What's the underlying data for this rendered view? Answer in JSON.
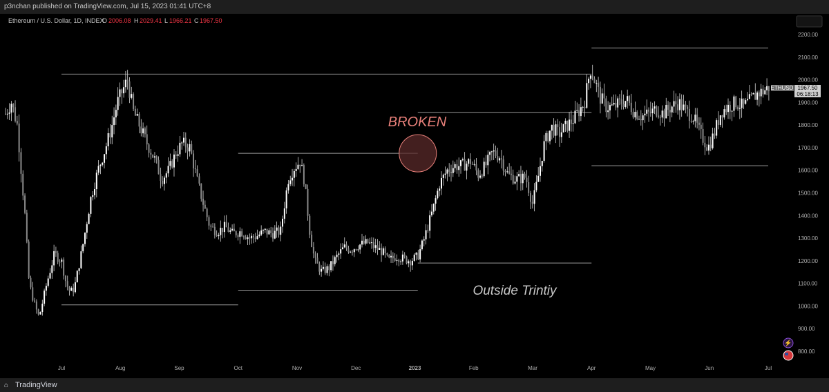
{
  "header": {
    "published": "p3nchan published on TradingView.com, Jul 15, 2023 01:41 UTC+8"
  },
  "legend": {
    "symbol": "Ethereum / U.S. Dollar, 1D, INDEX",
    "o_label": "O",
    "o_val": "2006.08",
    "h_label": "H",
    "h_val": "2029.41",
    "l_label": "L",
    "l_val": "1966.21",
    "c_label": "C",
    "c_val": "1967.50"
  },
  "price_tag": {
    "symbol": "ETHUSD",
    "price": "1967.50",
    "countdown": "06:18:13"
  },
  "footer": {
    "brand": "TradingView"
  },
  "colors": {
    "background": "#000000",
    "candle": "#ffffff",
    "level_line": "#9a9a9a",
    "annotation_broken": "#e8807a",
    "circle_fill": "#5a2a2a",
    "legend_value": "#f23645"
  },
  "annotations": [
    {
      "id": "broken",
      "text": "BROKEN"
    },
    {
      "id": "trinity",
      "text": "Outside Trintiy"
    }
  ],
  "chart_data": {
    "type": "candlestick",
    "title": "Ethereum / U.S. Dollar, 1D, INDEX",
    "x_ticks": [
      "Jul",
      "Aug",
      "Sep",
      "Oct",
      "Nov",
      "Dec",
      "2023",
      "Feb",
      "Mar",
      "Apr",
      "May",
      "Jun",
      "Jul"
    ],
    "y_ticks": [
      "2200.00",
      "2100.00",
      "2000.00",
      "1900.00",
      "1800.00",
      "1700.00",
      "1600.00",
      "1500.00",
      "1400.00",
      "1300.00",
      "1200.00",
      "1100.00",
      "1000.00",
      "900.00",
      "800.00"
    ],
    "ylim": [
      760,
      2250
    ],
    "x_range_months": [
      -0.75,
      12.55
    ],
    "price_path": [
      [
        -0.95,
        1850
      ],
      [
        -0.85,
        1900
      ],
      [
        -0.75,
        1800
      ],
      [
        -0.62,
        1400
      ],
      [
        -0.55,
        1100
      ],
      [
        -0.45,
        1000
      ],
      [
        -0.38,
        950
      ],
      [
        -0.25,
        1100
      ],
      [
        -0.12,
        1230
      ],
      [
        0.0,
        1200
      ],
      [
        0.08,
        1100
      ],
      [
        0.15,
        1060
      ],
      [
        0.22,
        1080
      ],
      [
        0.35,
        1250
      ],
      [
        0.5,
        1480
      ],
      [
        0.62,
        1600
      ],
      [
        0.75,
        1700
      ],
      [
        0.85,
        1790
      ],
      [
        0.95,
        1900
      ],
      [
        1.05,
        1960
      ],
      [
        1.12,
        2000
      ],
      [
        1.22,
        1860
      ],
      [
        1.32,
        1800
      ],
      [
        1.45,
        1720
      ],
      [
        1.58,
        1650
      ],
      [
        1.7,
        1560
      ],
      [
        1.82,
        1600
      ],
      [
        1.95,
        1680
      ],
      [
        2.05,
        1720
      ],
      [
        2.18,
        1700
      ],
      [
        2.3,
        1560
      ],
      [
        2.4,
        1460
      ],
      [
        2.52,
        1350
      ],
      [
        2.65,
        1330
      ],
      [
        2.78,
        1350
      ],
      [
        2.9,
        1320
      ],
      [
        3.05,
        1330
      ],
      [
        3.2,
        1300
      ],
      [
        3.32,
        1310
      ],
      [
        3.45,
        1330
      ],
      [
        3.58,
        1320
      ],
      [
        3.72,
        1330
      ],
      [
        3.85,
        1560
      ],
      [
        3.95,
        1610
      ],
      [
        4.05,
        1640
      ],
      [
        4.12,
        1560
      ],
      [
        4.22,
        1320
      ],
      [
        4.3,
        1200
      ],
      [
        4.42,
        1150
      ],
      [
        4.55,
        1170
      ],
      [
        4.68,
        1220
      ],
      [
        4.8,
        1260
      ],
      [
        4.92,
        1250
      ],
      [
        5.05,
        1270
      ],
      [
        5.2,
        1280
      ],
      [
        5.32,
        1260
      ],
      [
        5.45,
        1240
      ],
      [
        5.55,
        1200
      ],
      [
        5.68,
        1220
      ],
      [
        5.8,
        1210
      ],
      [
        5.92,
        1200
      ],
      [
        6.05,
        1220
      ],
      [
        6.15,
        1290
      ],
      [
        6.3,
        1420
      ],
      [
        6.42,
        1540
      ],
      [
        6.55,
        1600
      ],
      [
        6.68,
        1620
      ],
      [
        6.8,
        1620
      ],
      [
        6.95,
        1640
      ],
      [
        7.08,
        1580
      ],
      [
        7.2,
        1620
      ],
      [
        7.32,
        1680
      ],
      [
        7.45,
        1660
      ],
      [
        7.58,
        1580
      ],
      [
        7.72,
        1560
      ],
      [
        7.88,
        1570
      ],
      [
        8.0,
        1450
      ],
      [
        8.1,
        1580
      ],
      [
        8.2,
        1720
      ],
      [
        8.32,
        1790
      ],
      [
        8.45,
        1760
      ],
      [
        8.55,
        1790
      ],
      [
        8.68,
        1820
      ],
      [
        8.78,
        1860
      ],
      [
        8.88,
        1900
      ],
      [
        8.98,
        2050
      ],
      [
        9.05,
        2000
      ],
      [
        9.15,
        1920
      ],
      [
        9.25,
        1880
      ],
      [
        9.38,
        1880
      ],
      [
        9.5,
        1900
      ],
      [
        9.6,
        1910
      ],
      [
        9.72,
        1860
      ],
      [
        9.85,
        1840
      ],
      [
        9.98,
        1850
      ],
      [
        10.1,
        1870
      ],
      [
        10.22,
        1850
      ],
      [
        10.35,
        1880
      ],
      [
        10.48,
        1900
      ],
      [
        10.6,
        1860
      ],
      [
        10.72,
        1840
      ],
      [
        10.85,
        1760
      ],
      [
        10.98,
        1700
      ],
      [
        11.08,
        1760
      ],
      [
        11.2,
        1860
      ],
      [
        11.32,
        1880
      ],
      [
        11.45,
        1900
      ],
      [
        11.58,
        1880
      ],
      [
        11.7,
        1910
      ],
      [
        11.82,
        1940
      ],
      [
        11.92,
        1950
      ],
      [
        12.02,
        1967.5
      ]
    ],
    "levels": [
      {
        "price": 2025,
        "x_from": 0.0,
        "x_to": 9.0
      },
      {
        "price": 1005,
        "x_from": 0.0,
        "x_to": 3.0
      },
      {
        "price": 1675,
        "x_from": 3.0,
        "x_to": 6.05
      },
      {
        "price": 1070,
        "x_from": 3.0,
        "x_to": 6.05
      },
      {
        "price": 1855,
        "x_from": 6.05,
        "x_to": 9.0
      },
      {
        "price": 1190,
        "x_from": 6.05,
        "x_to": 9.0
      },
      {
        "price": 2140,
        "x_from": 9.0,
        "x_to": 12.0
      },
      {
        "price": 1620,
        "x_from": 9.0,
        "x_to": 12.0
      }
    ],
    "circle_marker": {
      "x_month": 6.05,
      "price": 1675
    }
  }
}
